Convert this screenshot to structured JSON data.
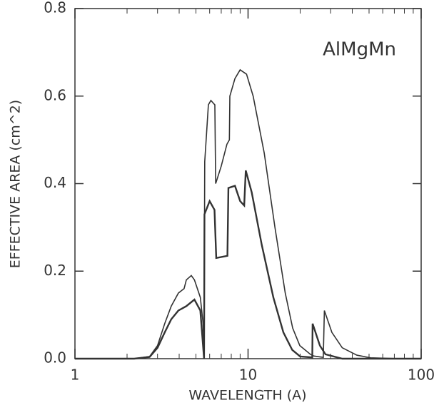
{
  "chart_data": {
    "type": "line",
    "ylabel": "EFFECTIVE AREA (cm^2)",
    "xlabel": "WAVELENGTH (A)",
    "annotation": "AlMgMn",
    "xscale": "log",
    "xlim": [
      1,
      100
    ],
    "xticks": [
      1,
      10,
      100
    ],
    "ylim": [
      0,
      0.8
    ],
    "yticks": [
      {
        "value": 0,
        "label": "0.0"
      },
      {
        "value": 0.2,
        "label": "0.2"
      },
      {
        "value": 0.4,
        "label": "0.4"
      },
      {
        "value": 0.6,
        "label": "0.6"
      },
      {
        "value": 0.8,
        "label": "0.8"
      }
    ],
    "series": [
      {
        "color": "#333333",
        "x": [
          1,
          2.2,
          2.7,
          3.0,
          3.3,
          3.6,
          3.96,
          4.27,
          4.4,
          4.7,
          4.9,
          5.3,
          5.5,
          5.57,
          5.62,
          5.9,
          6.1,
          6.43,
          6.5,
          7.0,
          7.55,
          7.8,
          7.85,
          8.4,
          9.0,
          9.8,
          10.7,
          12.4,
          14.3,
          16.4,
          18.1,
          19.9,
          22.9,
          24,
          27.2,
          27.6,
          30.5,
          35,
          42.5,
          51,
          75,
          100
        ],
        "values": [
          0,
          0,
          0.005,
          0.03,
          0.08,
          0.12,
          0.15,
          0.16,
          0.18,
          0.19,
          0.18,
          0.14,
          0.08,
          0,
          0.45,
          0.58,
          0.59,
          0.58,
          0.4,
          0.44,
          0.49,
          0.5,
          0.6,
          0.64,
          0.66,
          0.65,
          0.6,
          0.47,
          0.3,
          0.15,
          0.07,
          0.03,
          0.01,
          0.006,
          0.003,
          0.11,
          0.06,
          0.025,
          0.008,
          0.002,
          0,
          0
        ]
      },
      {
        "color": "#333333",
        "x": [
          1,
          2.2,
          2.7,
          3.0,
          3.3,
          3.6,
          3.96,
          4.4,
          4.9,
          5.3,
          5.57,
          5.6,
          6.0,
          6.4,
          6.55,
          7.6,
          7.7,
          8.4,
          9.0,
          9.5,
          9.7,
          10.5,
          12,
          14,
          16,
          18,
          20,
          23.5,
          23.6,
          26,
          28,
          35,
          100
        ],
        "values": [
          0,
          0,
          0.004,
          0.025,
          0.06,
          0.09,
          0.11,
          0.12,
          0.135,
          0.11,
          0,
          0.33,
          0.36,
          0.34,
          0.23,
          0.235,
          0.39,
          0.395,
          0.36,
          0.35,
          0.43,
          0.38,
          0.26,
          0.14,
          0.06,
          0.02,
          0.005,
          0.003,
          0.08,
          0.03,
          0.01,
          0,
          0
        ]
      }
    ]
  }
}
